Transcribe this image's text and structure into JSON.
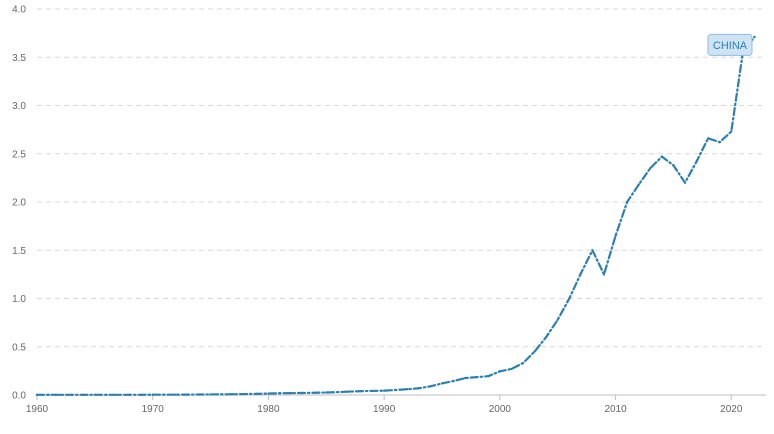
{
  "chart_data": {
    "type": "line",
    "title": "",
    "xlabel": "",
    "ylabel": "",
    "xlim": [
      1960,
      2023
    ],
    "ylim": [
      0,
      4.0
    ],
    "x_ticks": [
      1960,
      1970,
      1980,
      1990,
      2000,
      2010,
      2020
    ],
    "y_ticks": [
      0.0,
      0.5,
      1.0,
      1.5,
      2.0,
      2.5,
      3.0,
      3.5,
      4.0
    ],
    "grid": true,
    "series": [
      {
        "name": "CHINA",
        "color": "#2d7fb0",
        "label_bg": "#cfe3f5",
        "label_border": "#8fbde0",
        "line_style": "dash-dot",
        "x": [
          1960,
          1961,
          1962,
          1963,
          1964,
          1965,
          1966,
          1967,
          1968,
          1969,
          1970,
          1971,
          1972,
          1973,
          1974,
          1975,
          1976,
          1977,
          1978,
          1979,
          1980,
          1981,
          1982,
          1983,
          1984,
          1985,
          1986,
          1987,
          1988,
          1989,
          1990,
          1991,
          1992,
          1993,
          1994,
          1995,
          1996,
          1997,
          1998,
          1999,
          2000,
          2001,
          2002,
          2003,
          2004,
          2005,
          2006,
          2007,
          2008,
          2009,
          2010,
          2011,
          2012,
          2013,
          2014,
          2015,
          2016,
          2017,
          2018,
          2019,
          2020,
          2021,
          2022
        ],
        "values": [
          0.002,
          0.002,
          0.002,
          0.002,
          0.002,
          0.002,
          0.002,
          0.002,
          0.002,
          0.002,
          0.003,
          0.003,
          0.003,
          0.004,
          0.005,
          0.006,
          0.007,
          0.008,
          0.01,
          0.012,
          0.015,
          0.018,
          0.02,
          0.021,
          0.023,
          0.026,
          0.03,
          0.035,
          0.04,
          0.042,
          0.045,
          0.052,
          0.06,
          0.07,
          0.09,
          0.12,
          0.145,
          0.175,
          0.185,
          0.195,
          0.245,
          0.27,
          0.33,
          0.45,
          0.6,
          0.78,
          1.0,
          1.26,
          1.5,
          1.25,
          1.65,
          2.0,
          2.18,
          2.35,
          2.47,
          2.38,
          2.2,
          2.42,
          2.66,
          2.62,
          2.73,
          3.55,
          3.71
        ]
      }
    ]
  }
}
